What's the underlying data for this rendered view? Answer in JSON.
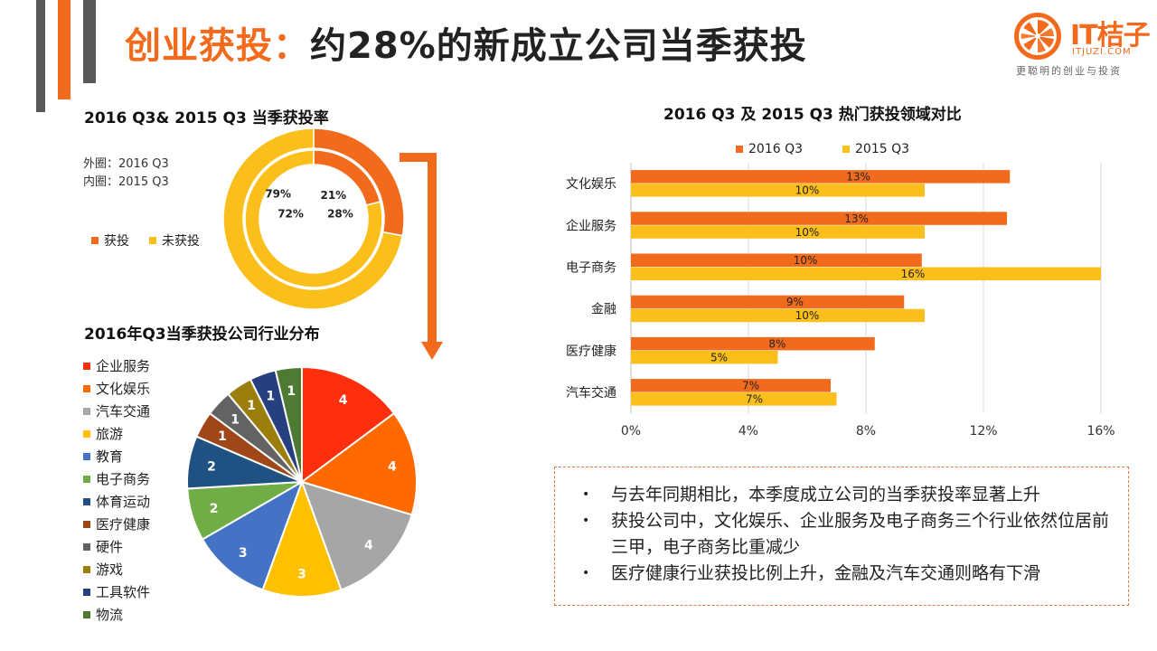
{
  "header": {
    "title_highlight": "创业获投：",
    "title_rest": "约28%的新成立公司当季获投"
  },
  "logo": {
    "name": "IT桔子",
    "domain": "ITJUZI.COM",
    "tagline": "更聪明的创业与投资",
    "icon": "orange-slice-icon"
  },
  "colors": {
    "orange": "#f26b1d",
    "yellow": "#fbbf1b",
    "dark_gray": "#595959"
  },
  "chart_data": [
    {
      "type": "donut",
      "title": "2016 Q3& 2015 Q3 当季获投率",
      "note_outer": "外圈：2016 Q3",
      "note_inner": "内圈：2015 Q3",
      "categories": [
        "获投",
        "未获投"
      ],
      "series": [
        {
          "name": "2016 Q3",
          "ring": "outer",
          "values": [
            28,
            72
          ],
          "labels": [
            "28%",
            "72%"
          ]
        },
        {
          "name": "2015 Q3",
          "ring": "inner",
          "values": [
            21,
            79
          ],
          "labels": [
            "21%",
            "79%"
          ]
        }
      ],
      "colors": [
        "#f26b1d",
        "#fbbf1b"
      ]
    },
    {
      "type": "pie",
      "title": "2016年Q3当季获投公司行业分布",
      "categories": [
        "企业服务",
        "文化娱乐",
        "汽车交通",
        "旅游",
        "教育",
        "电子商务",
        "体育运动",
        "医疗健康",
        "硬件",
        "游戏",
        "工具软件",
        "物流"
      ],
      "values": [
        4,
        4,
        4,
        3,
        3,
        2,
        2,
        1,
        1,
        1,
        1,
        1
      ],
      "labels": [
        "4",
        "4",
        "4",
        "3",
        "3",
        "2",
        "2",
        "1",
        "1",
        "1",
        "1",
        "1"
      ],
      "colors": [
        "#ff2e0c",
        "#ff6a00",
        "#a6a6a6",
        "#ffc000",
        "#4472c4",
        "#70ad47",
        "#1f5283",
        "#a0471a",
        "#636363",
        "#9c7e0c",
        "#253f7f",
        "#4e7a34"
      ]
    },
    {
      "type": "bar",
      "orientation": "horizontal",
      "title": "2016 Q3 及 2015 Q3 热门获投领域对比",
      "categories": [
        "文化娱乐",
        "企业服务",
        "电子商务",
        "金融",
        "医疗健康",
        "汽车交通"
      ],
      "series": [
        {
          "name": "2016 Q3",
          "values": [
            12.9,
            12.8,
            9.9,
            9.3,
            8.3,
            6.8
          ],
          "labels": [
            "13%",
            "13%",
            "10%",
            "9%",
            "8%",
            "7%"
          ],
          "color": "#f26b1d"
        },
        {
          "name": "2015 Q3",
          "values": [
            10,
            10,
            16,
            10,
            5,
            7
          ],
          "labels": [
            "10%",
            "10%",
            "16%",
            "10%",
            "5%",
            "7%"
          ],
          "color": "#fbbf1b"
        }
      ],
      "xlim": [
        0,
        16
      ],
      "xticks": [
        0,
        4,
        8,
        12,
        16
      ],
      "xtick_labels": [
        "0%",
        "4%",
        "8%",
        "12%",
        "16%"
      ]
    }
  ],
  "notes": [
    "与去年同期相比，本季度成立公司的当季获投率显著上升",
    "获投公司中，文化娱乐、企业服务及电子商务三个行业依然位居前三甲，电子商务比重减少",
    "医疗健康行业获投比例上升，金融及汽车交通则略有下滑"
  ],
  "notes_bullet": "•"
}
